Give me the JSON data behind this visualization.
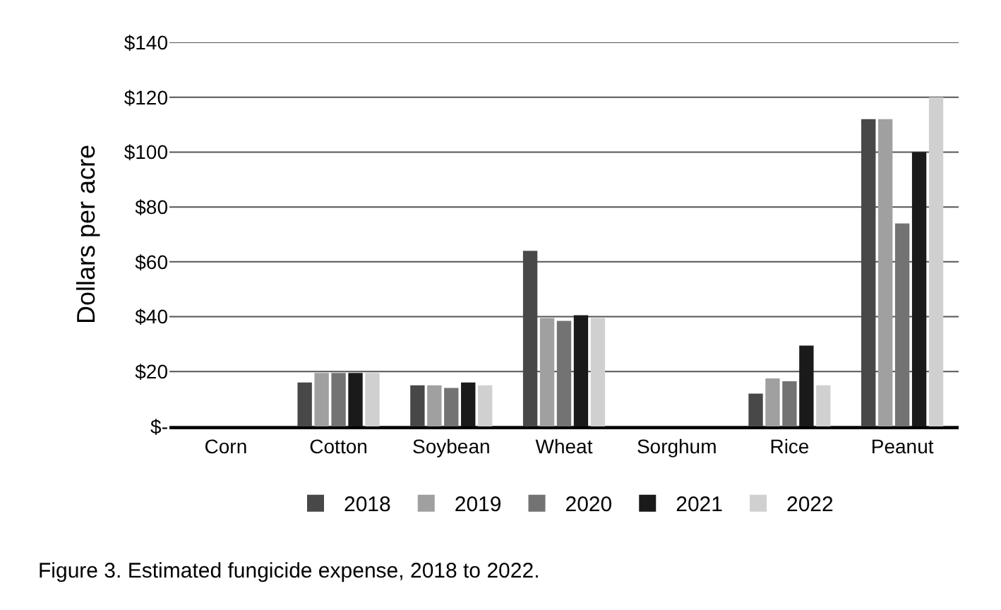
{
  "chart_data": {
    "type": "bar",
    "ylabel": "Dollars per acre",
    "categories": [
      "Corn",
      "Cotton",
      "Soybean",
      "Wheat",
      "Sorghum",
      "Rice",
      "Peanut"
    ],
    "series": [
      {
        "name": "2018",
        "color": "#484848",
        "values": [
          null,
          16,
          15,
          64,
          null,
          12,
          112
        ]
      },
      {
        "name": "2019",
        "color": "#a0a0a0",
        "values": [
          null,
          19.5,
          15,
          39.5,
          null,
          17.5,
          112
        ]
      },
      {
        "name": "2020",
        "color": "#737373",
        "values": [
          null,
          19.5,
          14,
          38.5,
          null,
          16.5,
          74
        ]
      },
      {
        "name": "2021",
        "color": "#1a1a1a",
        "values": [
          null,
          19.5,
          16,
          40.5,
          null,
          29.5,
          100
        ]
      },
      {
        "name": "2022",
        "color": "#d0d0d0",
        "values": [
          null,
          19.5,
          15,
          39.5,
          null,
          15,
          120
        ]
      }
    ],
    "ylim": [
      0,
      140
    ],
    "yticks": [
      {
        "value": 0,
        "label": "$-"
      },
      {
        "value": 20,
        "label": "$20"
      },
      {
        "value": 40,
        "label": "$40"
      },
      {
        "value": 60,
        "label": "$60"
      },
      {
        "value": 80,
        "label": "$80"
      },
      {
        "value": 100,
        "label": "$100"
      },
      {
        "value": 120,
        "label": "$120"
      },
      {
        "value": 140,
        "label": "$140"
      }
    ],
    "grid": "y",
    "legend": "bottom",
    "annotations": [
      "Figure 3. Estimated fungicide expense, 2018 to 2022."
    ]
  }
}
